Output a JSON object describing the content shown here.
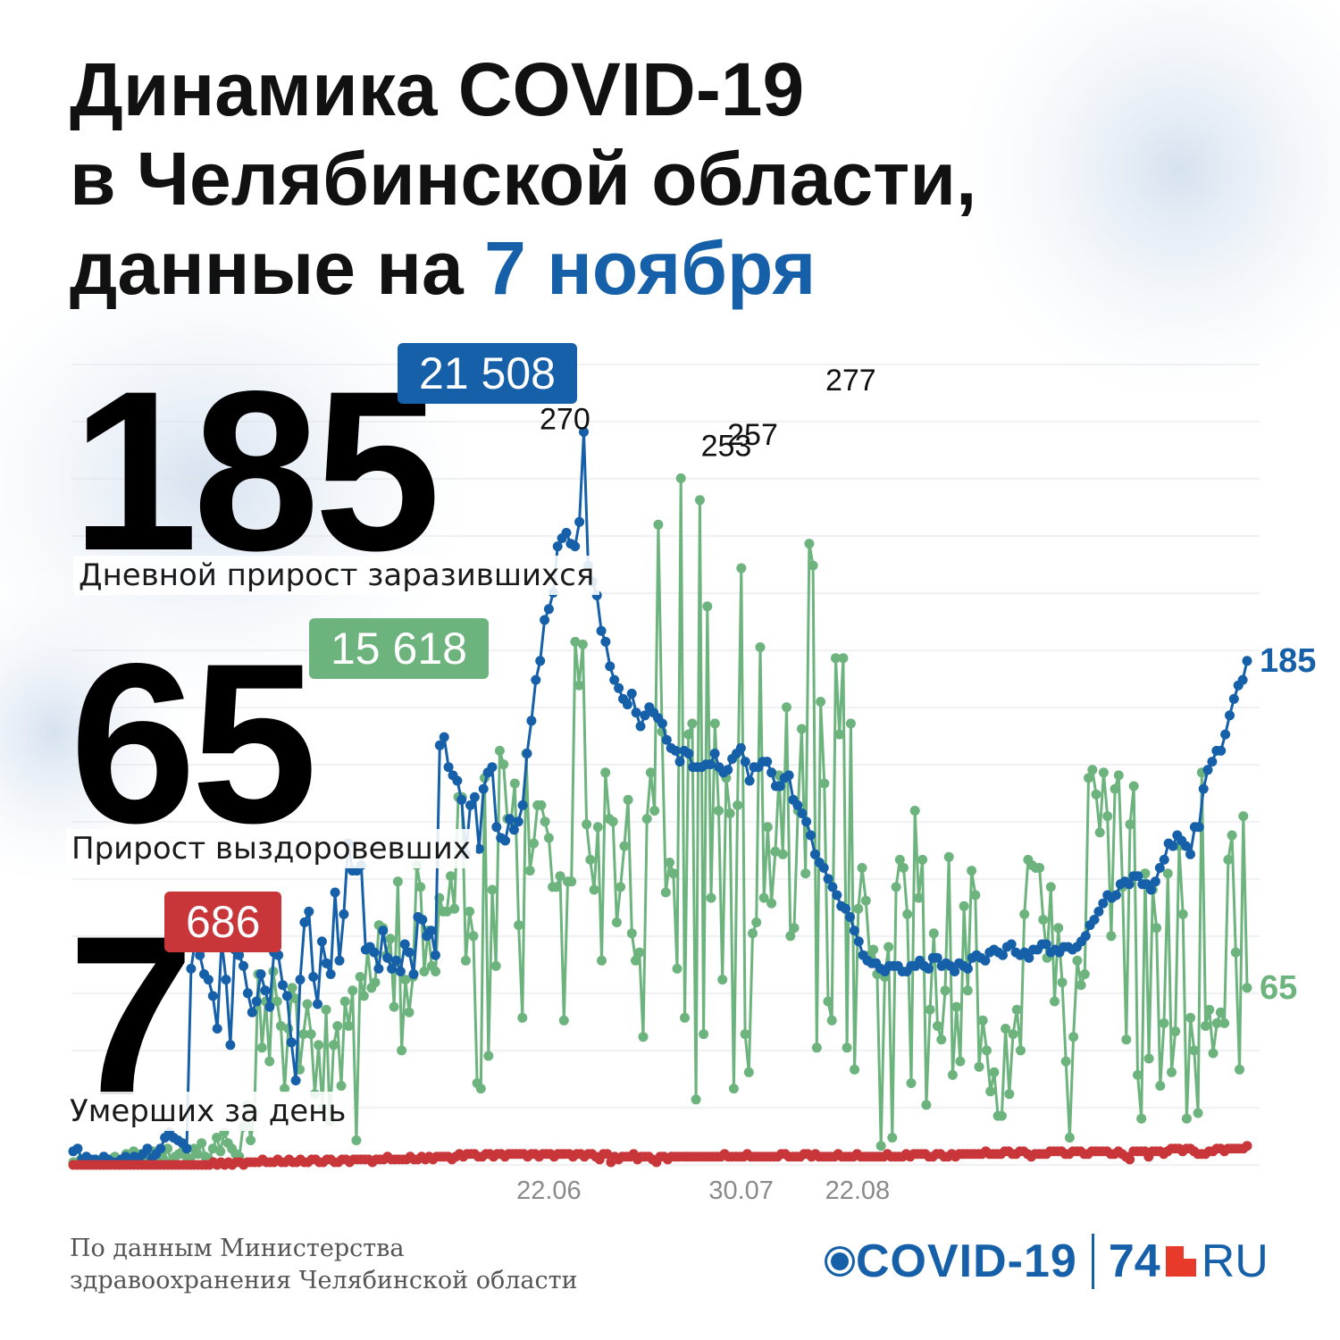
{
  "title": {
    "line1": "Динамика COVID-19",
    "line2": "в Челябинской области,",
    "line3_prefix": "данные на ",
    "line3_date": "7 ноября"
  },
  "stats": {
    "cases": {
      "value": "185",
      "total": "21 508",
      "caption": "Дневной прирост заразившихся"
    },
    "recovered": {
      "value": "65",
      "total": "15 618",
      "caption": "Прирост выздоровевших"
    },
    "deaths": {
      "value": "7",
      "total": "686",
      "caption": "Умерших за день"
    }
  },
  "colors": {
    "cases": "#1560a8",
    "recovered": "#6db37e",
    "deaths": "#c9363a",
    "accent": "#1560a8"
  },
  "chart_data": {
    "type": "line",
    "x_start": "2020-03-20",
    "x_end": "2020-11-07",
    "x_tick_labels": [
      "22.06",
      "30.07",
      "22.08"
    ],
    "x_ticks": [
      "2020-06-22",
      "2020-07-30",
      "2020-08-22"
    ],
    "grid": true,
    "ylim": [
      0,
      280
    ],
    "series": [
      {
        "key": "cases",
        "color": "#1560a8",
        "end_label": "185",
        "annotations": [
          {
            "date": "2020-06-18",
            "value": 270,
            "label": "270"
          }
        ],
        "values": [
          5,
          6,
          2,
          3,
          2,
          2,
          1,
          3,
          2,
          1,
          1,
          2,
          3,
          1,
          3,
          2,
          4,
          6,
          2,
          4,
          6,
          10,
          12,
          10,
          9,
          8,
          6,
          72,
          83,
          77,
          70,
          68,
          62,
          50,
          82,
          68,
          44,
          79,
          77,
          73,
          63,
          56,
          60,
          70,
          64,
          58,
          78,
          77,
          66,
          62,
          45,
          31,
          68,
          89,
          93,
          69,
          59,
          82,
          74,
          70,
          100,
          75,
          92,
          118,
          108,
          108,
          110,
          79,
          80,
          78,
          72,
          86,
          76,
          72,
          75,
          71,
          81,
          78,
          70,
          91,
          90,
          84,
          86,
          77,
          154,
          157,
          146,
          143,
          141,
          134,
          114,
          132,
          135,
          116,
          138,
          144,
          146,
          124,
          120,
          119,
          127,
          123,
          126,
          132,
          151,
          163,
          178,
          185,
          200,
          204,
          210,
          227,
          230,
          232,
          228,
          227,
          236,
          269,
          220,
          214,
          209,
          196,
          192,
          183,
          178,
          175,
          171,
          169,
          173,
          166,
          161,
          165,
          168,
          166,
          164,
          162,
          156,
          153,
          152,
          148,
          152,
          151,
          146,
          146,
          146,
          147,
          147,
          151,
          146,
          144,
          145,
          149,
          151,
          153,
          148,
          141,
          146,
          146,
          148,
          148,
          144,
          139,
          139,
          142,
          143,
          134,
          132,
          129,
          126,
          121,
          114,
          111,
          109,
          105,
          102,
          99,
          95,
          94,
          91,
          86,
          82,
          77,
          75,
          74,
          74,
          72,
          71,
          73,
          73,
          73,
          71,
          71,
          73,
          73,
          75,
          73,
          72,
          76,
          76,
          73,
          74,
          73,
          71,
          74,
          73,
          72,
          76,
          77,
          76,
          75,
          78,
          79,
          78,
          77,
          80,
          81,
          78,
          77,
          78,
          76,
          79,
          79,
          81,
          81,
          78,
          79,
          78,
          80,
          80,
          79,
          80,
          82,
          84,
          88,
          90,
          93,
          96,
          99,
          98,
          99,
          103,
          104,
          103,
          106,
          106,
          103,
          103,
          101,
          104,
          109,
          112,
          118,
          117,
          121,
          119,
          117,
          114,
          124,
          124,
          138,
          145,
          148,
          152,
          152,
          158,
          165,
          171,
          176,
          178,
          185
        ]
      },
      {
        "key": "recovered",
        "color": "#6db37e",
        "end_label": "65",
        "annotations": [
          {
            "date": "2020-07-27",
            "value": 253,
            "label": "253"
          },
          {
            "date": "2020-08-01",
            "value": 257,
            "label": "257"
          },
          {
            "date": "2020-08-21",
            "value": 277,
            "label": "277"
          }
        ],
        "values": [
          1,
          1,
          2,
          1,
          0,
          1,
          2,
          1,
          0,
          2,
          1,
          3,
          1,
          2,
          4,
          3,
          5,
          2,
          4,
          1,
          3,
          5,
          3,
          4,
          2,
          6,
          1,
          3,
          4,
          5,
          3,
          2,
          6,
          4,
          8,
          3,
          2,
          6,
          10,
          5,
          12,
          8,
          6,
          4,
          3,
          14,
          22,
          9,
          19,
          70,
          43,
          60,
          38,
          71,
          60,
          51,
          28,
          50,
          65,
          61,
          35,
          48,
          59,
          48,
          26,
          44,
          21,
          57,
          16,
          44,
          51,
          29,
          60,
          51,
          64,
          9,
          69,
          62,
          79,
          65,
          67,
          88,
          87,
          77,
          83,
          58,
          104,
          42,
          68,
          56,
          69,
          110,
          102,
          71,
          86,
          73,
          71,
          98,
          93,
          93,
          106,
          94,
          135,
          135,
          75,
          93,
          84,
          30,
          28,
          142,
          40,
          101,
          73,
          152,
          147,
          127,
          126,
          140,
          88,
          54,
          151,
          108,
          118,
          132,
          132,
          126,
          120,
          102,
          102,
          106,
          53,
          104,
          104,
          192,
          176,
          191,
          125,
          112,
          101,
          124,
          75,
          144,
          127,
          126,
          89,
          102,
          117,
          134,
          85,
          75,
          78,
          47,
          127,
          144,
          130,
          235,
          159,
          100,
          111,
          107,
          72,
          252,
          54,
          158,
          162,
          24,
          244,
          48,
          205,
          98,
          162,
          130,
          68,
          142,
          129,
          28,
          132,
          219,
          48,
          34,
          85,
          89,
          190,
          98,
          124,
          96,
          115,
          143,
          114,
          168,
          84,
          87,
          130,
          160,
          107,
          228,
          220,
          43,
          170,
          140,
          60,
          53,
          186,
          158,
          186,
          43,
          162,
          35,
          94,
          109,
          97,
          77,
          79,
          70,
          7,
          69,
          80,
          10,
          102,
          112,
          109,
          92,
          30,
          130,
          98,
          112,
          22,
          57,
          85,
          51,
          46,
          64,
          113,
          33,
          58,
          38,
          95,
          64,
          108,
          99,
          36,
          53,
          42,
          27,
          34,
          18,
          18,
          50,
          26,
          48,
          57,
          42,
          92,
          112,
          110,
          109,
          109,
          90,
          76,
          102,
          60,
          87,
          67,
          38,
          10,
          47,
          75,
          66,
          70,
          142,
          145,
          136,
          122,
          144,
          128,
          84,
          138,
          143,
          102,
          46,
          125,
          139,
          33,
          17,
          107,
          39,
          101,
          87,
          29,
          52,
          107,
          34,
          49,
          117,
          92,
          17,
          54,
          42,
          19,
          144,
          51,
          57,
          41,
          52,
          56,
          52,
          112,
          121,
          78,
          35,
          128,
          65
        ]
      },
      {
        "key": "deaths",
        "color": "#c9363a",
        "values": [
          0,
          0,
          0,
          0,
          0,
          0,
          0,
          0,
          0,
          0,
          0,
          0,
          0,
          0,
          0,
          0,
          0,
          0,
          0,
          0,
          0,
          0,
          0,
          0,
          0,
          0,
          0,
          0,
          0,
          0,
          0,
          0,
          0,
          0,
          0,
          0,
          0,
          1,
          0,
          1,
          0,
          1,
          0,
          1,
          1,
          0,
          1,
          1,
          1,
          1,
          2,
          1,
          1,
          1,
          2,
          1,
          1,
          2,
          1,
          1,
          2,
          1,
          1,
          2,
          2,
          1,
          1,
          2,
          2,
          1,
          1,
          2,
          2,
          1,
          2,
          2,
          2,
          2,
          2,
          1,
          2,
          2,
          2,
          3,
          2,
          2,
          2,
          2,
          2,
          3,
          2,
          2,
          3,
          2,
          3,
          2,
          3,
          3,
          3,
          3,
          2,
          3,
          4,
          3,
          4,
          4,
          4,
          3,
          3,
          4,
          4,
          3,
          4,
          4,
          3,
          4,
          4,
          4,
          4,
          4,
          3,
          4,
          4,
          3,
          4,
          4,
          4,
          3,
          4,
          4,
          4,
          4,
          3,
          4,
          4,
          3,
          4,
          4,
          3,
          2,
          4,
          4,
          1,
          3,
          2,
          3,
          3,
          3,
          4,
          2,
          3,
          3,
          3,
          2,
          1,
          3,
          3,
          2,
          3,
          3,
          3,
          3,
          3,
          3,
          3,
          3,
          3,
          3,
          3,
          3,
          3,
          3,
          4,
          3,
          3,
          3,
          3,
          3,
          4,
          3,
          3,
          3,
          3,
          3,
          3,
          3,
          3,
          4,
          4,
          3,
          3,
          3,
          3,
          4,
          4,
          3,
          4,
          3,
          3,
          3,
          3,
          3,
          4,
          3,
          3,
          3,
          3,
          4,
          3,
          3,
          3,
          3,
          3,
          3,
          3,
          4,
          3,
          3,
          3,
          3,
          4,
          3,
          4,
          4,
          4,
          4,
          3,
          3,
          4,
          4,
          3,
          3,
          4,
          3,
          4,
          4,
          4,
          4,
          4,
          4,
          4,
          5,
          4,
          4,
          4,
          4,
          5,
          5,
          4,
          4,
          5,
          5,
          4,
          3,
          4,
          4,
          4,
          4,
          5,
          5,
          5,
          5,
          4,
          4,
          5,
          5,
          5,
          4,
          4,
          5,
          5,
          5,
          5,
          5,
          4,
          4,
          5,
          4,
          3,
          2,
          5,
          5,
          5,
          5,
          3,
          5,
          5,
          5,
          4,
          5,
          6,
          6,
          6,
          5,
          6,
          6,
          5,
          4,
          4,
          4,
          5,
          5,
          6,
          6,
          5,
          6,
          6,
          6,
          6,
          6,
          7
        ]
      }
    ]
  },
  "source": {
    "line1": "По данным Министерства",
    "line2": "здравоохранения Челябинской области"
  },
  "logo": {
    "covid": "COVID-19",
    "num": "74",
    "ru": "RU"
  }
}
